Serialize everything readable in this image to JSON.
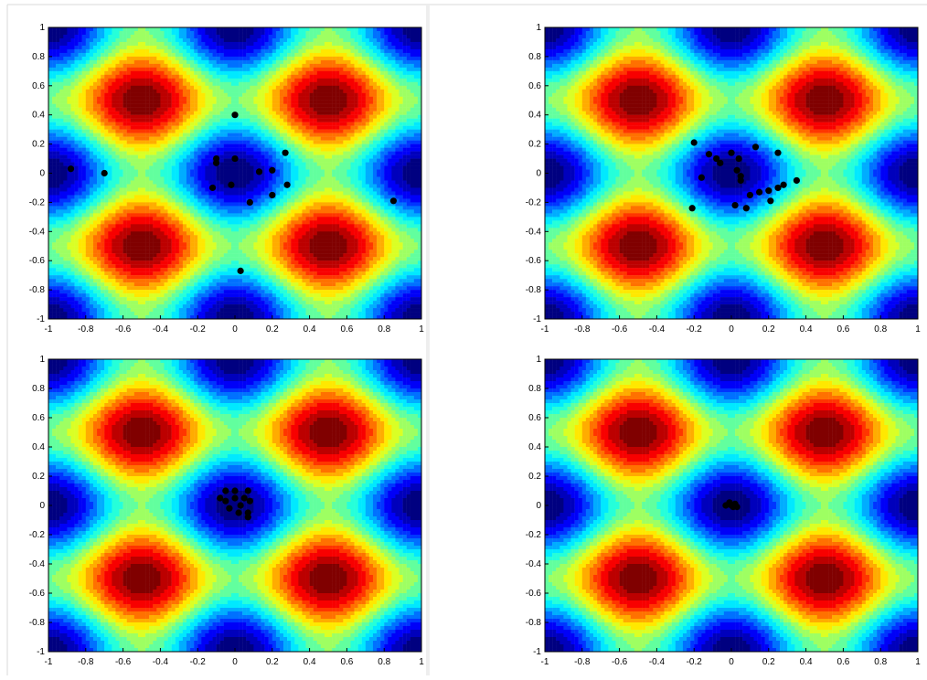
{
  "chart_data": [
    {
      "type": "scatter",
      "color": "#000000",
      "x": [
        0,
        -0.88,
        -0.7,
        -0.1,
        -0.1,
        0,
        -0.02,
        0.13,
        0.2,
        0.27,
        0.28,
        0.2,
        0.08,
        -0.12,
        0.85,
        0.03
      ],
      "y": [
        0.4,
        0.03,
        0,
        0.1,
        0.07,
        0.1,
        -0.08,
        0.01,
        0.02,
        0.14,
        -0.08,
        -0.15,
        -0.2,
        -0.1,
        -0.19,
        -0.67
      ],
      "xlim": [
        -1,
        1
      ],
      "ylim": [
        -1,
        1
      ],
      "xticks": [
        -1,
        -0.8,
        -0.6,
        -0.4,
        -0.2,
        0,
        0.2,
        0.4,
        0.6,
        0.8,
        1
      ],
      "yticks": [
        -1,
        -0.8,
        -0.6,
        -0.4,
        -0.2,
        0,
        0.2,
        0.4,
        0.6,
        0.8,
        1
      ]
    },
    {
      "type": "scatter",
      "color": "#000000",
      "x": [
        -0.2,
        -0.12,
        -0.06,
        -0.08,
        0,
        0.04,
        0.13,
        0.25,
        -0.16,
        0.03,
        0.05,
        0.1,
        0.05,
        0.2,
        0.21,
        0.25,
        0.28,
        0.35,
        0.15,
        0.02,
        0.08,
        -0.21
      ],
      "y": [
        0.21,
        0.13,
        0.07,
        0.1,
        0.14,
        0.1,
        0.18,
        0.14,
        -0.03,
        0.02,
        -0.05,
        -0.15,
        -0.02,
        -0.12,
        -0.19,
        -0.1,
        -0.08,
        -0.05,
        -0.13,
        -0.22,
        -0.24,
        -0.24
      ],
      "xlim": [
        -1,
        1
      ],
      "ylim": [
        -1,
        1
      ],
      "xticks": [
        -1,
        -0.8,
        -0.6,
        -0.4,
        -0.2,
        0,
        0.2,
        0.4,
        0.6,
        0.8,
        1
      ],
      "yticks": [
        -1,
        -0.8,
        -0.6,
        -0.4,
        -0.2,
        0,
        0.2,
        0.4,
        0.6,
        0.8,
        1
      ]
    },
    {
      "type": "scatter",
      "color": "#000000",
      "x": [
        -0.08,
        -0.05,
        0,
        0.07,
        -0.05,
        0,
        0.05,
        0.08,
        -0.03,
        0.02,
        0.07,
        0.07,
        0.03
      ],
      "y": [
        0.05,
        0.1,
        0.1,
        0.1,
        0.03,
        0.05,
        0.05,
        0.03,
        -0.02,
        -0.05,
        -0.05,
        -0.08,
        0
      ],
      "xlim": [
        -1,
        1
      ],
      "ylim": [
        -1,
        1
      ],
      "xticks": [
        -1,
        -0.8,
        -0.6,
        -0.4,
        -0.2,
        0,
        0.2,
        0.4,
        0.6,
        0.8,
        1
      ],
      "yticks": [
        -1,
        -0.8,
        -0.6,
        -0.4,
        -0.2,
        0,
        0.2,
        0.4,
        0.6,
        0.8,
        1
      ]
    },
    {
      "type": "scatter",
      "color": "#000000",
      "x": [
        0,
        -0.03,
        0.02,
        0.01,
        -0.01,
        0.03
      ],
      "y": [
        0,
        0,
        0.01,
        -0.01,
        0.02,
        -0.01
      ],
      "xlim": [
        -1,
        1
      ],
      "ylim": [
        -1,
        1
      ],
      "xticks": [
        -1,
        -0.8,
        -0.6,
        -0.4,
        -0.2,
        0,
        0.2,
        0.4,
        0.6,
        0.8,
        1
      ],
      "yticks": [
        -1,
        -0.8,
        -0.6,
        -0.4,
        -0.2,
        0,
        0.2,
        0.4,
        0.6,
        0.8,
        1
      ]
    }
  ]
}
